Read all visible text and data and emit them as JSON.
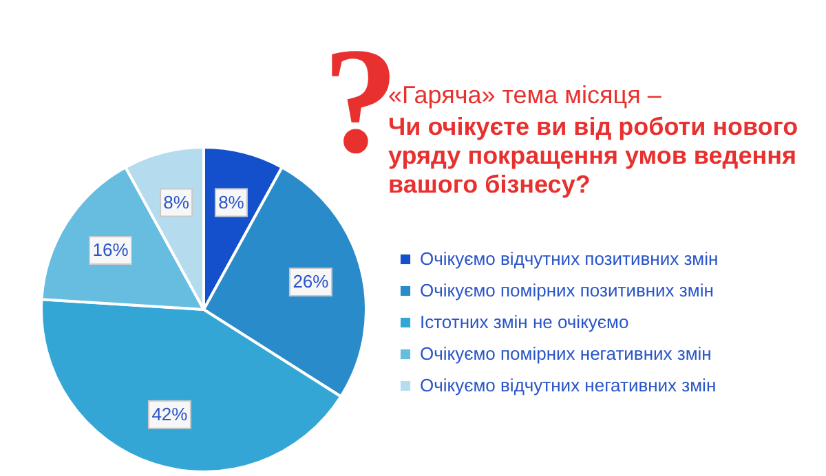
{
  "chart_data": {
    "type": "pie",
    "title": "«Гаряча» тема місяця –",
    "subtitle": "Чи очікуєте ви від роботи нового уряду покращення умов ведення вашого бізнесу?",
    "categories": [
      "Очікуємо відчутних позитивних змін",
      "Очікуємо помірних позитивних змін",
      "Істотних змін не очікуємо",
      "Очікуємо помірних негативних змін",
      "Очікуємо відчутних негативних змін"
    ],
    "values": [
      8,
      26,
      42,
      16,
      8
    ],
    "value_labels": [
      "8%",
      "26%",
      "42%",
      "16%",
      "8%"
    ],
    "colors": [
      "#1450cc",
      "#2a8bcb",
      "#33a6d6",
      "#66bde0",
      "#b4dcee"
    ],
    "legend": "right",
    "annotations": [
      "?"
    ]
  }
}
